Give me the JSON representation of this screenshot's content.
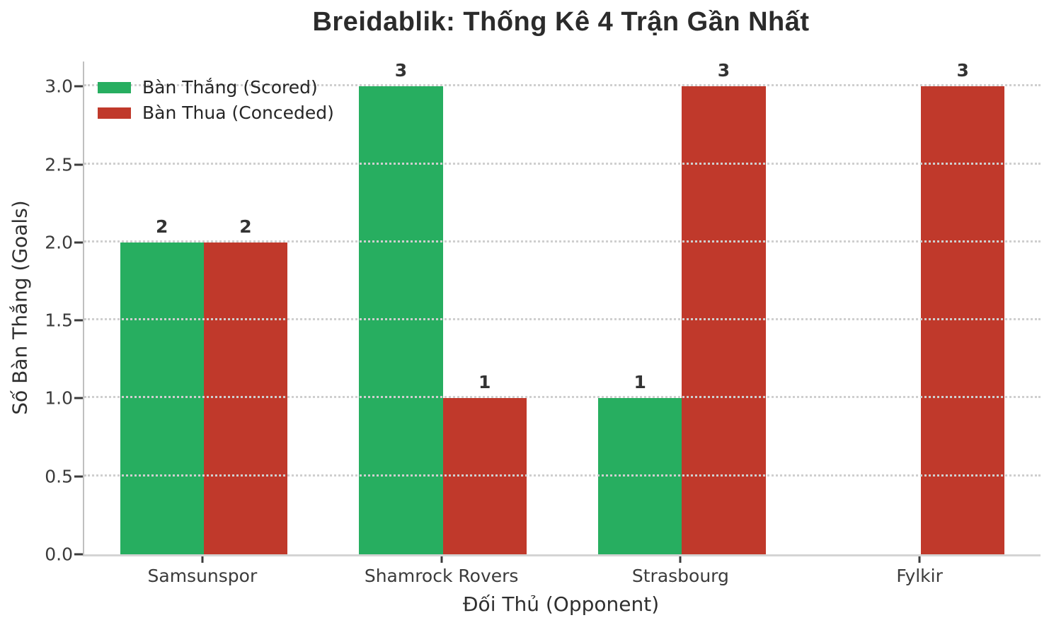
{
  "chart_data": {
    "type": "bar",
    "title": "Breidablik: Thống Kê 4 Trận Gần Nhất",
    "xlabel": "Đối Thủ (Opponent)",
    "ylabel": "Số Bàn Thắng (Goals)",
    "categories": [
      "Samsunspor",
      "Shamrock Rovers",
      "Strasbourg",
      "Fylkir"
    ],
    "series": [
      {
        "name": "Bàn Thắng (Scored)",
        "color": "#27ae60",
        "values": [
          2,
          3,
          1,
          0
        ]
      },
      {
        "name": "Bàn Thua (Conceded)",
        "color": "#c0392b",
        "values": [
          2,
          1,
          3,
          3
        ]
      }
    ],
    "ytick_labels": [
      "0.0",
      "0.5",
      "1.0",
      "1.5",
      "2.0",
      "2.5",
      "3.0"
    ],
    "yticks": [
      0,
      0.5,
      1,
      1.5,
      2,
      2.5,
      3
    ],
    "ylim": [
      0,
      3.16
    ],
    "bar_width_fraction": 0.35,
    "grid": "horizontal-dotted",
    "legend_position": "upper-left",
    "show_value_labels": true,
    "hide_zero_bars": true
  }
}
